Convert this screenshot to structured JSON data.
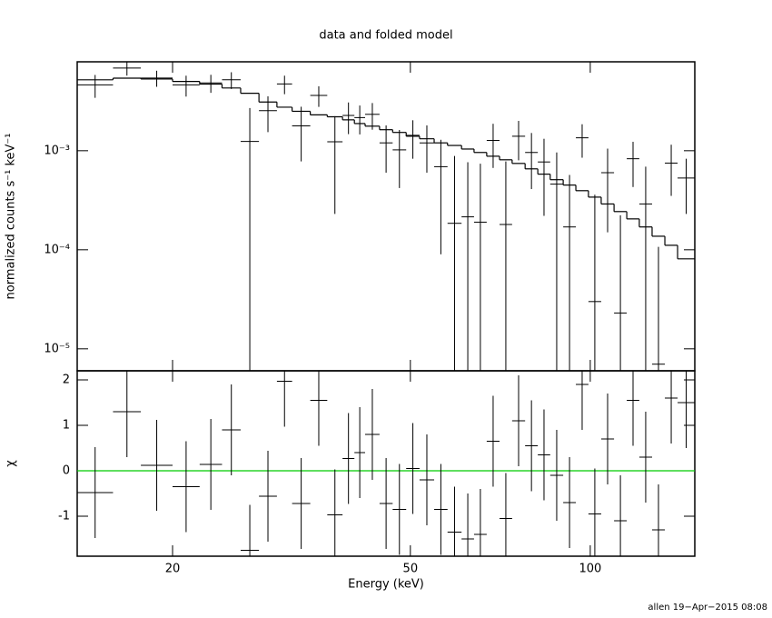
{
  "chart_data": [
    {
      "type": "errorbar",
      "title": "data and folded model",
      "ylabel": "normalized counts s⁻¹ keV⁻¹",
      "xscale": "log",
      "yscale": "log",
      "xlim": [
        13.85,
        149.6
      ],
      "ylim": [
        6e-06,
        0.0079
      ],
      "xticks": [
        20,
        50,
        100
      ],
      "yticks": [
        {
          "value": 1e-05,
          "label": "10⁻⁵"
        },
        {
          "value": 0.0001,
          "label": "10⁻⁴"
        },
        {
          "value": 0.001,
          "label": "10⁻³"
        }
      ],
      "bin_edges": [
        13.85,
        15.9,
        17.7,
        20,
        22.2,
        24.2,
        26,
        27.9,
        29.9,
        31.7,
        34.0,
        36.3,
        38.5,
        40.3,
        42.0,
        44.4,
        46.7,
        49.2,
        51.8,
        54.8,
        57.7,
        60.9,
        63.9,
        67.1,
        70.5,
        74.0,
        77.8,
        81.7,
        85.7,
        90.1,
        94.6,
        99.3,
        104.3,
        109.6,
        115.1,
        120.8,
        126.9,
        133.3,
        140.0,
        149.6
      ],
      "values": [
        0.00462,
        0.00683,
        0.00542,
        0.00462,
        0.00484,
        0.0052,
        0.00124,
        0.00254,
        0.00472,
        0.00178,
        0.00362,
        0.00123,
        0.00227,
        0.00216,
        0.00233,
        0.0012,
        0.00102,
        0.00143,
        0.0012,
        0.00069,
        0.000185,
        0.000215,
        0.00019,
        0.00127,
        0.00018,
        0.0014,
        0.00096,
        0.00077,
        0.00046,
        0.00017,
        0.00135,
        3e-05,
        0.0006,
        2.3e-05,
        0.00083,
        0.00029,
        7e-06,
        0.00075,
        0.00053
      ],
      "errors": [
        0.0012,
        0.0011,
        0.001,
        0.0011,
        0.001,
        0.001,
        0.00146,
        0.001,
        0.001,
        0.001,
        0.00085,
        0.001,
        0.0008,
        0.0007,
        0.0007,
        0.0006,
        0.0006,
        0.0006,
        0.0006,
        0.0006,
        0.0007,
        0.00055,
        0.00055,
        0.0006,
        0.0006,
        0.0006,
        0.00055,
        0.00055,
        0.0005,
        0.0004,
        0.0005,
        0.00033,
        0.00045,
        0.0002,
        0.0004,
        0.0004,
        0.0001,
        0.0004,
        0.0003
      ],
      "model": [
        0.0052,
        0.0054,
        0.0053,
        0.005,
        0.0047,
        0.0043,
        0.0038,
        0.0031,
        0.00275,
        0.0025,
        0.0023,
        0.0022,
        0.00205,
        0.00188,
        0.00177,
        0.00163,
        0.00153,
        0.0014,
        0.00132,
        0.0012,
        0.00113,
        0.00104,
        0.00096,
        0.00088,
        0.00081,
        0.000744,
        0.000656,
        0.00058,
        0.00051,
        0.00045,
        0.000395,
        0.00034,
        0.00029,
        0.000243,
        0.000205,
        0.00017,
        0.000137,
        0.000111,
        8.1e-05
      ],
      "color": "#000000"
    },
    {
      "type": "errorbar",
      "xlabel": "Energy (keV)",
      "ylabel": "χ",
      "xscale": "log",
      "yscale": "linear",
      "xlim": [
        13.85,
        149.6
      ],
      "ylim": [
        -1.88,
        2.2
      ],
      "xticks": [
        20,
        50,
        100
      ],
      "yticks": [
        -1,
        0,
        1,
        2
      ],
      "bin_edges": [
        13.85,
        15.9,
        17.7,
        20,
        22.2,
        24.2,
        26,
        27.9,
        29.9,
        31.7,
        34.0,
        36.3,
        38.5,
        40.3,
        42.0,
        44.4,
        46.7,
        49.2,
        51.8,
        54.8,
        57.7,
        60.9,
        63.9,
        67.1,
        70.5,
        74.0,
        77.8,
        81.7,
        85.7,
        90.1,
        94.6,
        99.3,
        104.3,
        109.6,
        115.1,
        120.8,
        126.9,
        133.3,
        140.0,
        149.6
      ],
      "values": [
        -0.48,
        1.3,
        0.12,
        -0.35,
        0.14,
        0.9,
        -1.75,
        -0.56,
        1.97,
        -0.72,
        1.55,
        -0.97,
        0.27,
        0.4,
        0.8,
        -0.72,
        -0.85,
        0.05,
        -0.2,
        -0.85,
        -1.35,
        -1.5,
        -1.4,
        0.65,
        -1.05,
        1.1,
        0.55,
        0.35,
        -0.1,
        -0.7,
        1.9,
        -0.95,
        0.7,
        -1.1,
        1.55,
        0.3,
        -1.3,
        1.6,
        1.5
      ],
      "errors": [
        1,
        1,
        1,
        1,
        1,
        1,
        1,
        1,
        1,
        1,
        1,
        1,
        1,
        1,
        1,
        1,
        1,
        1,
        1,
        1,
        1,
        1,
        1,
        1,
        1,
        1,
        1,
        1,
        1,
        1,
        1,
        1,
        1,
        1,
        1,
        1,
        1,
        1,
        1
      ],
      "reference_line": {
        "value": 0,
        "color": "#00cc00"
      },
      "color": "#000000"
    }
  ],
  "footer": "allen 19−Apr−2015 08:08"
}
